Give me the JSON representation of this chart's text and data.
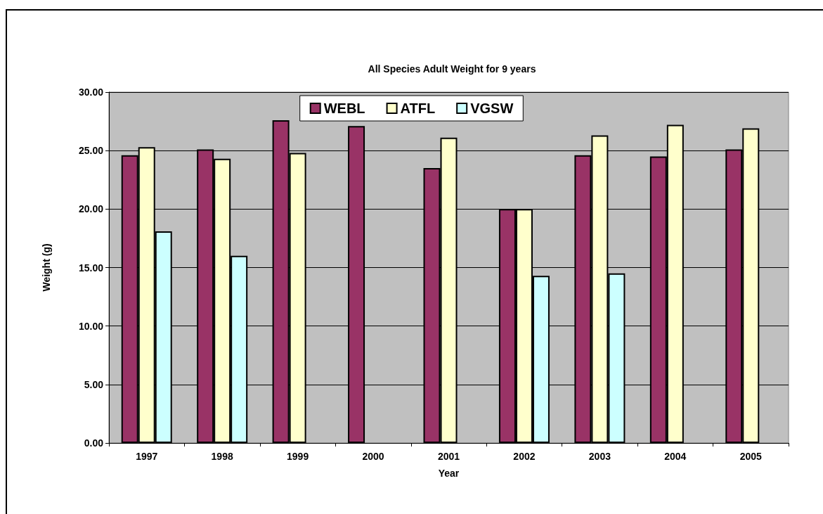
{
  "chart_data": {
    "type": "bar",
    "title": "All Species Adult Weight for 9 years",
    "xlabel": "Year",
    "ylabel": "Weight (g)",
    "categories": [
      "1997",
      "1998",
      "1999",
      "2000",
      "2001",
      "2002",
      "2003",
      "2004",
      "2005"
    ],
    "series": [
      {
        "name": "WEBL",
        "color": "#993366",
        "values": [
          24.6,
          25.1,
          27.6,
          27.1,
          23.5,
          20.0,
          24.6,
          24.5,
          25.1
        ]
      },
      {
        "name": "ATFL",
        "color": "#ffffcc",
        "values": [
          25.3,
          24.3,
          24.8,
          null,
          26.1,
          20.0,
          26.3,
          27.2,
          26.9
        ]
      },
      {
        "name": "VGSW",
        "color": "#ccffff",
        "values": [
          18.1,
          16.0,
          null,
          null,
          null,
          14.3,
          14.5,
          null,
          null
        ]
      }
    ],
    "ylim": [
      0,
      30
    ],
    "yticks": [
      {
        "value": 0,
        "label": "0.00"
      },
      {
        "value": 5,
        "label": "5.00"
      },
      {
        "value": 10,
        "label": "10.00"
      },
      {
        "value": 15,
        "label": "15.00"
      },
      {
        "value": 20,
        "label": "20.00"
      },
      {
        "value": 25,
        "label": "25.00"
      },
      {
        "value": 30,
        "label": "30.00"
      }
    ],
    "grid": "y",
    "legend": "top"
  }
}
